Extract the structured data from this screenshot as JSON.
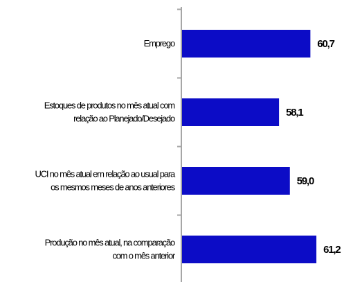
{
  "chart_data": {
    "type": "bar",
    "orientation": "horizontal",
    "categories": [
      [
        "Emprego"
      ],
      [
        "Estoques de produtos no mês atual com",
        "relação ao Planejado/Desejado"
      ],
      [
        "UCI no mês atual em relação ao usual para",
        "os mesmos meses de anos anteriores"
      ],
      [
        "Produção no mês atual, na comparação",
        "com o mês anterior"
      ]
    ],
    "values": [
      60.7,
      58.1,
      59.0,
      61.2
    ],
    "value_labels": [
      "60,7",
      "58,1",
      "59,0",
      "61,2"
    ],
    "xlim": [
      50,
      62
    ],
    "bar_color": "#0c0cc6",
    "axis_color": "#a6a6a6",
    "grid": false,
    "legend": "none"
  }
}
